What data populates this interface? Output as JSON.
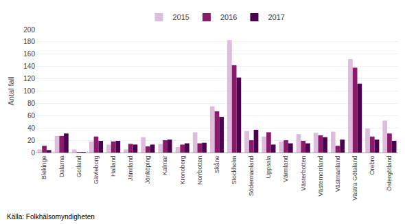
{
  "chart_data": {
    "type": "bar",
    "categories": [
      "Blekinge",
      "Dalarna",
      "Gotland",
      "Gävleborg",
      "Halland",
      "Jämtland",
      "Jönköping",
      "Kalmar",
      "Kronoberg",
      "Norrbotten",
      "Skåne",
      "Stockholm",
      "Södermanland",
      "Uppsala",
      "Värmland",
      "Västerbotten",
      "Västernorrland",
      "Västmanland",
      "Västra Götaland",
      "Örebro",
      "Östergötland"
    ],
    "series": [
      {
        "name": "2015",
        "color": "#ddbddd",
        "values": [
          5,
          27,
          5,
          18,
          13,
          5,
          25,
          14,
          9,
          33,
          75,
          183,
          35,
          26,
          18,
          30,
          32,
          34,
          152,
          39,
          52
        ]
      },
      {
        "name": "2016",
        "color": "#8b1a6b",
        "values": [
          11,
          27,
          1,
          26,
          18,
          14,
          10,
          20,
          13,
          15,
          67,
          142,
          20,
          33,
          20,
          19,
          28,
          11,
          138,
          26,
          31
        ]
      },
      {
        "name": "2017",
        "color": "#4b0050",
        "values": [
          4,
          31,
          1,
          19,
          19,
          13,
          13,
          21,
          15,
          16,
          58,
          122,
          37,
          13,
          15,
          15,
          25,
          21,
          112,
          21,
          19
        ]
      }
    ],
    "ylabel": "Antal fall",
    "ylim": [
      0,
      200
    ],
    "yticks": [
      0,
      20,
      40,
      60,
      80,
      100,
      120,
      140,
      160,
      180,
      200
    ],
    "grid": true,
    "legend": "top",
    "annotations": [
      "Källa: Folkhälsomyndigheten"
    ]
  }
}
